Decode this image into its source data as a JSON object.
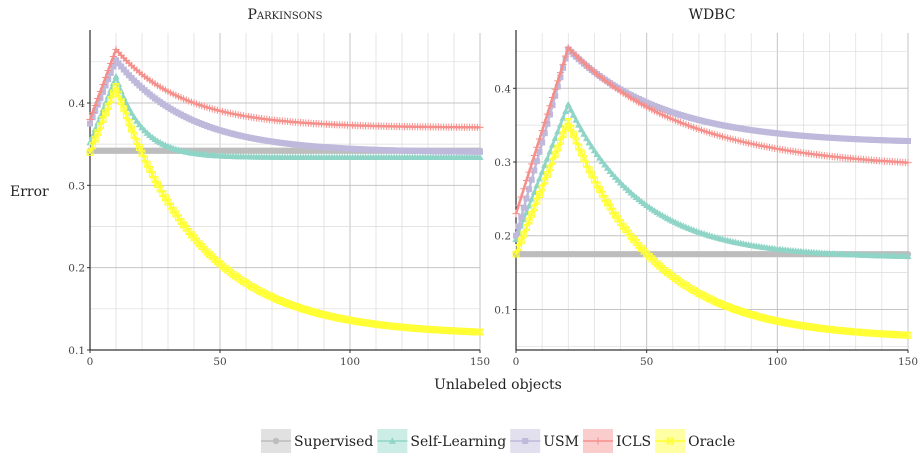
{
  "xlabel": "Unlabeled objects",
  "ylabel": "Error",
  "colors": {
    "Supervised": "#bdbdbd",
    "Self-Learning": "#8fd5c7",
    "USM": "#bfb9dc",
    "ICLS": "#f58f8b",
    "Oracle": "#ffff33"
  },
  "legend": [
    {
      "name": "Supervised",
      "marker": "circle"
    },
    {
      "name": "Self-Learning",
      "marker": "triangle"
    },
    {
      "name": "USM",
      "marker": "square"
    },
    {
      "name": "ICLS",
      "marker": "plus"
    },
    {
      "name": "Oracle",
      "marker": "box-x"
    }
  ],
  "chart_data": [
    {
      "type": "line",
      "title": "Parkinsons",
      "xlim": [
        0,
        150
      ],
      "ylim": [
        0.1,
        0.485
      ],
      "xticks": [
        0,
        50,
        100,
        150
      ],
      "yticks": [
        0.1,
        0.2,
        0.3,
        0.4
      ],
      "peak_x": 10,
      "series": [
        {
          "name": "Supervised",
          "start": 0.342,
          "peak": 0.342,
          "end": 0.342,
          "decay": 30
        },
        {
          "name": "Self-Learning",
          "start": 0.352,
          "peak": 0.432,
          "end": 0.334,
          "decay": 10
        },
        {
          "name": "USM",
          "start": 0.375,
          "peak": 0.452,
          "end": 0.34,
          "decay": 28
        },
        {
          "name": "ICLS",
          "start": 0.38,
          "peak": 0.465,
          "end": 0.37,
          "decay": 26
        },
        {
          "name": "Oracle",
          "start": 0.34,
          "peak": 0.42,
          "end": 0.118,
          "decay": 32
        }
      ]
    },
    {
      "type": "line",
      "title": "WDBC",
      "xlim": [
        0,
        150
      ],
      "ylim": [
        0.045,
        0.475
      ],
      "xticks": [
        0,
        50,
        100,
        150
      ],
      "yticks": [
        0.1,
        0.2,
        0.3,
        0.4
      ],
      "peak_x": 20,
      "series": [
        {
          "name": "Supervised",
          "start": 0.175,
          "peak": 0.175,
          "end": 0.175,
          "decay": 30
        },
        {
          "name": "Self-Learning",
          "start": 0.195,
          "peak": 0.378,
          "end": 0.17,
          "decay": 28
        },
        {
          "name": "USM",
          "start": 0.2,
          "peak": 0.453,
          "end": 0.325,
          "decay": 36
        },
        {
          "name": "ICLS",
          "start": 0.23,
          "peak": 0.455,
          "end": 0.29,
          "decay": 45
        },
        {
          "name": "Oracle",
          "start": 0.175,
          "peak": 0.355,
          "end": 0.06,
          "decay": 32
        }
      ]
    }
  ]
}
